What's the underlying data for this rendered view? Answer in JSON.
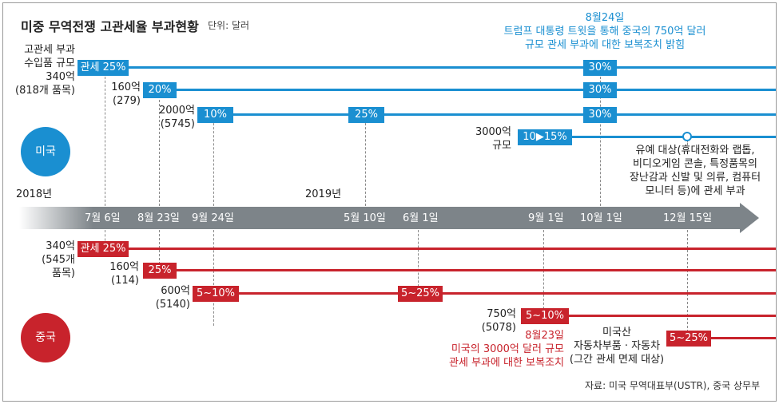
{
  "title": "미중 무역전쟁 고관세율 부과현황",
  "unit": "단위: 달러",
  "source": "자료: 미국 무역대표부(USTR), 중국 상무부",
  "years": {
    "y2018": "2018년",
    "y2019": "2019년"
  },
  "timeline_dates": [
    "7월 6일",
    "8월 23일",
    "9월 24일",
    "5월 10일",
    "6월 1일",
    "9월 1일",
    "10월 1일",
    "12월 15일"
  ],
  "us": {
    "label": "미국",
    "color": "#1a8fd1",
    "rows": [
      {
        "amount_lines": [
          "고관세 부과",
          "수입품 규모",
          "340억",
          "(818개 품목)"
        ],
        "tags": [
          "관세 25%",
          "30%"
        ]
      },
      {
        "amount_lines": [
          "160억",
          "(279)"
        ],
        "tags": [
          "20%",
          "30%"
        ]
      },
      {
        "amount_lines": [
          "2000억",
          "(5745)"
        ],
        "tags": [
          "10%",
          "25%",
          "30%"
        ]
      },
      {
        "amount_lines": [
          "3000억",
          "규모"
        ],
        "tags": [
          "10▶15%"
        ]
      }
    ],
    "note_top": [
      "8월24일",
      "트럼프 대통령 트윗을 통해 중국의 750억 달러",
      "규모 관세 부과에 대한 보복조치 밝힘"
    ],
    "note_dec": [
      "유예 대상(휴대전화와 랩톱,",
      "비디오게임 콘솔, 특정품목의",
      "장난감과 신발 및 의류, 컴퓨터",
      "모니터 등)에 관세 부과"
    ]
  },
  "china": {
    "label": "중국",
    "color": "#c8232c",
    "rows": [
      {
        "amount_lines": [
          "340억",
          "(545개",
          "품목)"
        ],
        "tags": [
          "관세 25%"
        ]
      },
      {
        "amount_lines": [
          "160억",
          "(114)"
        ],
        "tags": [
          "25%"
        ]
      },
      {
        "amount_lines": [
          "600억",
          "(5140)"
        ],
        "tags": [
          "5~10%",
          "5~25%"
        ]
      },
      {
        "amount_lines": [
          "750억",
          "(5078)"
        ],
        "tags": [
          "5~10%"
        ]
      },
      {
        "amount_lines": [
          "미국산",
          "자동차부품 · 자동차",
          "(그간 관세 면제 대상)"
        ],
        "tags": [
          "5~25%"
        ]
      }
    ],
    "note_aug": [
      "8월23일",
      "미국의 3000억 달러 규모",
      "관세 부과에 대한 보복조치"
    ]
  }
}
